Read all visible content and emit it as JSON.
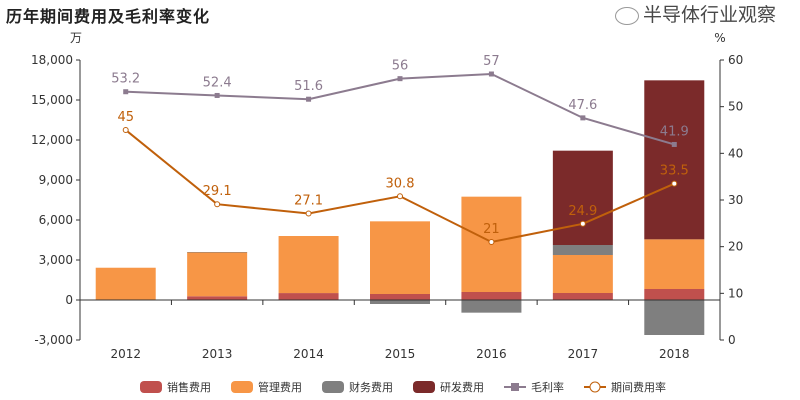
{
  "chart_data": {
    "type": "bar",
    "title": "历年期间费用及毛利率变化",
    "ylabel": "万",
    "y2label": "%",
    "categories": [
      "2012",
      "2013",
      "2014",
      "2015",
      "2016",
      "2017",
      "2018"
    ],
    "ylim": [
      -3000,
      18000
    ],
    "yticks": [
      -3000,
      0,
      3000,
      6000,
      9000,
      12000,
      15000,
      18000
    ],
    "ytick_labels": [
      "-3,000",
      "0",
      "3,000",
      "6,000",
      "9,000",
      "12,000",
      "15,000",
      "18,000"
    ],
    "y2lim": [
      0,
      60
    ],
    "y2ticks": [
      "0",
      "10",
      "20",
      "30",
      "40",
      "50",
      "60"
    ],
    "stacked": true,
    "series": [
      {
        "name": "销售费用",
        "kind": "bar",
        "color": "#c0504d",
        "values": [
          30,
          280,
          520,
          450,
          600,
          525,
          825
        ]
      },
      {
        "name": "管理费用",
        "kind": "bar",
        "color": "#f79646",
        "values": [
          2390,
          3300,
          4280,
          5450,
          7150,
          2850,
          3725
        ]
      },
      {
        "name": "财务费用",
        "kind": "bar",
        "color": "#7f7f7f",
        "values": [
          0,
          20,
          0,
          -300,
          -950,
          750,
          -2625
        ]
      },
      {
        "name": "研发费用",
        "kind": "bar",
        "color": "#7b2a2a",
        "values": [
          0,
          0,
          0,
          0,
          0,
          7075,
          11925
        ]
      },
      {
        "name": "毛利率",
        "kind": "line",
        "axis": "right",
        "color": "#8c7b8f",
        "values": [
          53.2,
          52.4,
          51.6,
          56,
          57,
          47.6,
          41.9
        ],
        "labels": [
          "53.2",
          "52.4",
          "51.6",
          "56",
          "57",
          "47.6",
          "41.9"
        ]
      },
      {
        "name": "期间费用率",
        "kind": "line",
        "axis": "right",
        "color": "#c0600b",
        "values": [
          45,
          29.1,
          27.1,
          30.8,
          21,
          24.9,
          33.5
        ],
        "labels": [
          "45",
          "29.1",
          "27.1",
          "30.8",
          "21",
          "24.9",
          "33.5"
        ]
      }
    ],
    "legend_position": "bottom",
    "grid": false
  },
  "watermark": "半导体行业观察"
}
